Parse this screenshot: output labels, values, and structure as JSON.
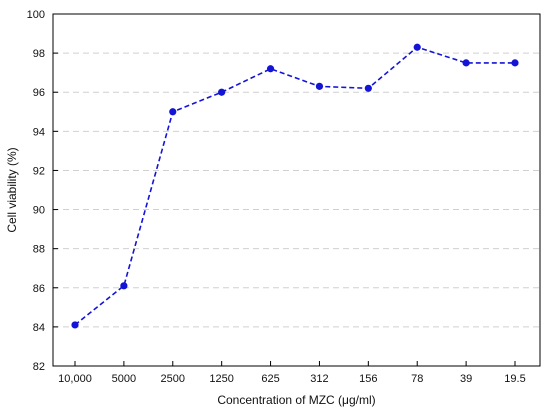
{
  "chart_data": {
    "type": "line",
    "title": "",
    "xlabel": "Concentration of MZC (μg/ml)",
    "ylabel": "Cell viability (%)",
    "categories": [
      "10,000",
      "5000",
      "2500",
      "1250",
      "625",
      "312",
      "156",
      "78",
      "39",
      "19.5"
    ],
    "series": [
      {
        "values": [
          84.1,
          86.1,
          95.0,
          96.0,
          97.2,
          96.3,
          96.2,
          98.3,
          97.5,
          97.5
        ]
      }
    ],
    "ylim": [
      82,
      100
    ],
    "yticks": [
      82,
      84,
      86,
      88,
      90,
      92,
      94,
      96,
      98,
      100
    ],
    "grid": true,
    "line_style": "dashed",
    "marker": "circle",
    "colors": {
      "series": "#1414d6",
      "grid": "#d0d0d0",
      "axis": "#000000"
    }
  }
}
